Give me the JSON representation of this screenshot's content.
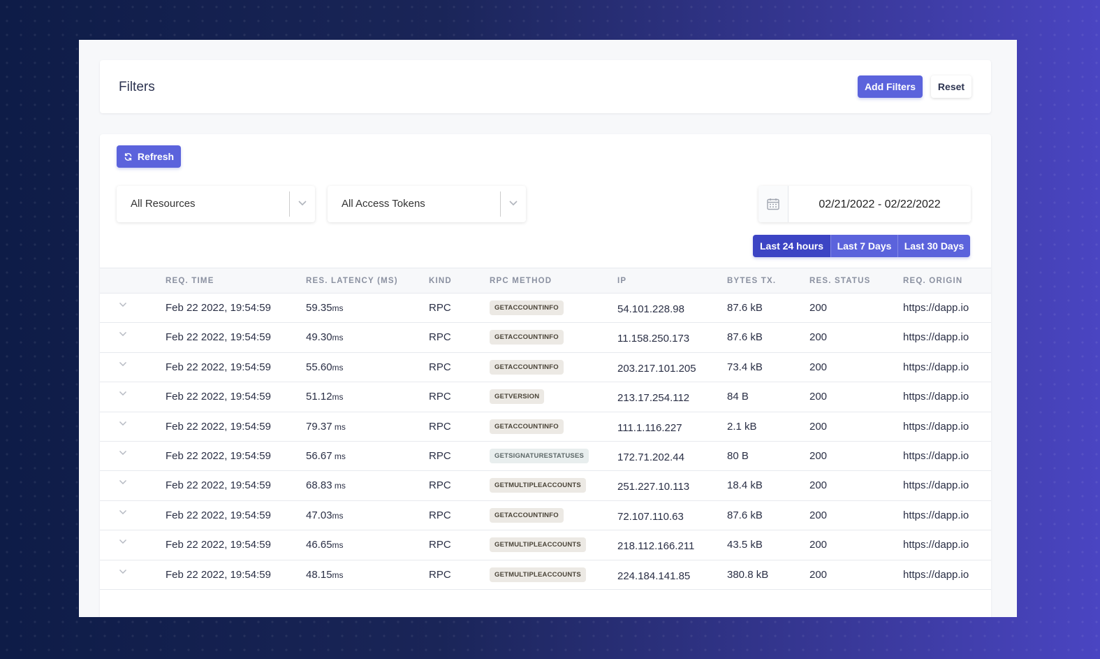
{
  "filters": {
    "title": "Filters",
    "add_label": "Add Filters",
    "reset_label": "Reset"
  },
  "toolbar": {
    "refresh_label": "Refresh"
  },
  "selects": {
    "resources": "All Resources",
    "tokens": "All Access Tokens"
  },
  "date_range": "02/21/2022 - 02/22/2022",
  "ranges": [
    "Last 24 hours",
    "Last 7 Days",
    "Last 30 Days"
  ],
  "active_range": "Last 24 hours",
  "colors": {
    "accent": "#5b63dc",
    "accent_active": "#3c44c4"
  },
  "table": {
    "headers": {
      "time": "REQ. TIME",
      "latency": "RES. LATENCY (MS)",
      "kind": "KIND",
      "rpc": "RPC METHOD",
      "ip": "IP",
      "bytes": "BYTES TX.",
      "status": "RES. STATUS",
      "origin": "REQ. ORIGIN"
    },
    "rows": [
      {
        "time": "Feb 22 2022, 19:54:59",
        "latency": "59.35",
        "unit": "ms",
        "kind": "RPC",
        "rpc": "GETACCOUNTINFO",
        "ip": "54.101.228.98",
        "bytes": "87.6 kB",
        "status": "200",
        "origin": "https://dapp.io"
      },
      {
        "time": "Feb 22 2022, 19:54:59",
        "latency": "49.30",
        "unit": "ms",
        "kind": "RPC",
        "rpc": "GETACCOUNTINFO",
        "ip": "11.158.250.173",
        "bytes": "87.6 kB",
        "status": "200",
        "origin": "https://dapp.io"
      },
      {
        "time": "Feb 22 2022, 19:54:59",
        "latency": "55.60",
        "unit": "ms",
        "kind": "RPC",
        "rpc": "GETACCOUNTINFO",
        "ip": "203.217.101.205",
        "bytes": "73.4 kB",
        "status": "200",
        "origin": "https://dapp.io"
      },
      {
        "time": "Feb 22 2022, 19:54:59",
        "latency": "51.12",
        "unit": "ms",
        "kind": "RPC",
        "rpc": "GETVERSION",
        "ip": "213.17.254.112",
        "bytes": "84 B",
        "status": "200",
        "origin": "https://dapp.io"
      },
      {
        "time": "Feb 22 2022, 19:54:59",
        "latency": "79.37",
        "unit": " ms",
        "kind": "RPC",
        "rpc": "GETACCOUNTINFO",
        "ip": "111.1.116.227",
        "bytes": "2.1 kB",
        "status": "200",
        "origin": "https://dapp.io"
      },
      {
        "time": "Feb 22 2022, 19:54:59",
        "latency": "56.67",
        "unit": " ms",
        "kind": "RPC",
        "rpc": "GETSIGNATURESTATUSES",
        "ip": "172.71.202.44",
        "bytes": "80 B",
        "status": "200",
        "origin": "https://dapp.io"
      },
      {
        "time": "Feb 22 2022, 19:54:59",
        "latency": "68.83",
        "unit": " ms",
        "kind": "RPC",
        "rpc": "GETMULTIPLEACCOUNTS",
        "ip": "251.227.10.113",
        "bytes": "18.4 kB",
        "status": "200",
        "origin": "https://dapp.io"
      },
      {
        "time": "Feb 22 2022, 19:54:59",
        "latency": "47.03",
        "unit": "ms",
        "kind": "RPC",
        "rpc": "GETACCOUNTINFO",
        "ip": "72.107.110.63",
        "bytes": "87.6 kB",
        "status": "200",
        "origin": "https://dapp.io"
      },
      {
        "time": "Feb 22 2022, 19:54:59",
        "latency": "46.65",
        "unit": "ms",
        "kind": "RPC",
        "rpc": "GETMULTIPLEACCOUNTS",
        "ip": "218.112.166.211",
        "bytes": "43.5 kB",
        "status": "200",
        "origin": "https://dapp.io"
      },
      {
        "time": "Feb 22 2022, 19:54:59",
        "latency": "48.15",
        "unit": "ms",
        "kind": "RPC",
        "rpc": "GETMULTIPLEACCOUNTS",
        "ip": "224.184.141.85",
        "bytes": "380.8 kB",
        "status": "200",
        "origin": "https://dapp.io"
      }
    ]
  }
}
